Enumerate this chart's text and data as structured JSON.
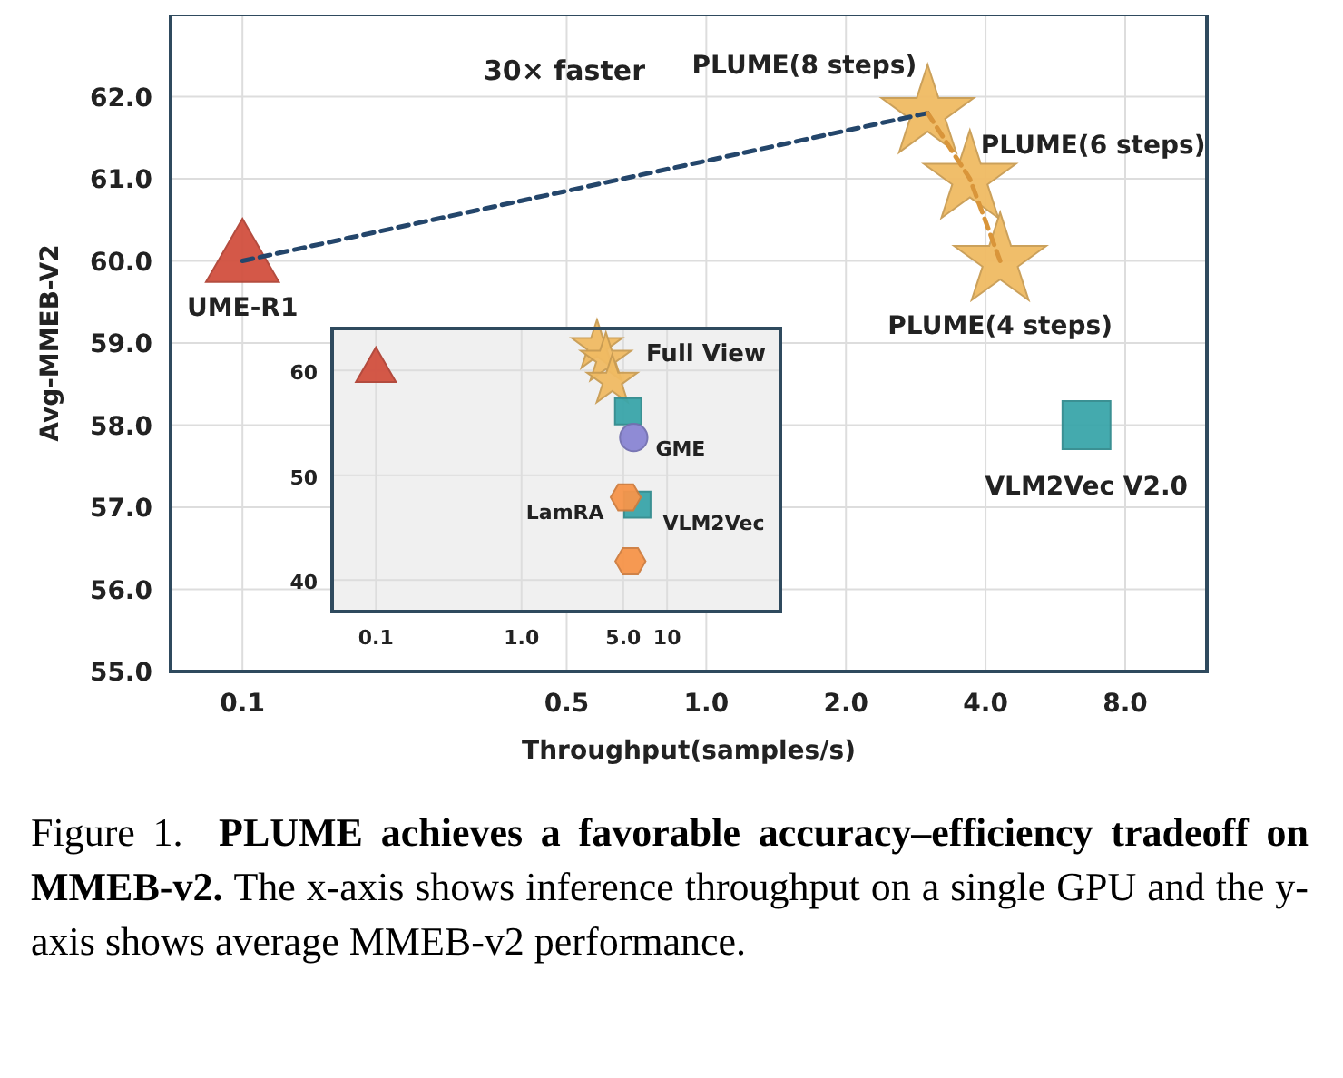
{
  "chart_data": [
    {
      "type": "scatter",
      "xlabel": "Throughput(samples/s)",
      "ylabel": "Avg-MMEB-V2",
      "log": "x",
      "xlim": [
        0.07,
        12
      ],
      "xticks": [
        0.1,
        0.5,
        {
          "value": 1,
          "label": "1.0"
        },
        {
          "value": 2,
          "label": "2.0"
        },
        {
          "value": 4,
          "label": "4.0"
        },
        {
          "value": 8,
          "label": "8.0"
        }
      ],
      "ylim": [
        55,
        63
      ],
      "yticks": [
        {
          "value": 55,
          "label": "55.0"
        },
        {
          "value": 56,
          "label": "56.0"
        },
        {
          "value": 57,
          "label": "57.0"
        },
        {
          "value": 58,
          "label": "58.0"
        },
        {
          "value": 59,
          "label": "59.0"
        },
        {
          "value": 60,
          "label": "60.0"
        },
        {
          "value": 61,
          "label": "61.0"
        },
        {
          "value": 62,
          "label": "62.0"
        }
      ],
      "grid": true,
      "legend": false,
      "annotations": [
        "30× faster",
        "Figure 1.",
        "PLUME achieves a favorable accuracy–efficiency tradeoff on MMEB-v2.",
        "The x-axis shows inference throughput on a single GPU and the y-axis shows average MMEB-v2 performance."
      ],
      "series": [
        {
          "type": "line",
          "color": "#24466b",
          "line_style": "dashed",
          "marker": "none",
          "x": [
            0.1,
            3.0
          ],
          "values": [
            60.0,
            61.8
          ]
        },
        {
          "type": "line",
          "color": "#d9953a",
          "line_style": "dashed",
          "marker": "none",
          "x": [
            3.0,
            3.7,
            4.3
          ],
          "values": [
            61.8,
            61.0,
            60.0
          ]
        },
        {
          "name": "UME-R1",
          "color": "#d2503f",
          "marker": "triangle",
          "x": [
            0.1
          ],
          "values": [
            60.0
          ]
        },
        {
          "name": "PLUME(8 steps)",
          "color": "#f0bb63",
          "marker": "star",
          "x": [
            3.0
          ],
          "values": [
            61.8
          ]
        },
        {
          "name": "PLUME(6 steps)",
          "color": "#f0bb63",
          "marker": "star",
          "x": [
            3.7
          ],
          "values": [
            61.0
          ]
        },
        {
          "name": "PLUME(4 steps)",
          "color": "#f0bb63",
          "marker": "star",
          "x": [
            4.3
          ],
          "values": [
            60.0
          ]
        },
        {
          "name": "VLM2Vec V2.0",
          "color": "#3aa6aa",
          "marker": "square",
          "x": [
            6.6
          ],
          "values": [
            58.0
          ]
        }
      ]
    },
    {
      "type": "scatter",
      "title": "Full View",
      "log": "x",
      "xlim": [
        0.05,
        60
      ],
      "xticks": [
        0.1,
        {
          "value": 1,
          "label": "1.0"
        },
        {
          "value": 5,
          "label": "5.0"
        },
        10
      ],
      "ylim": [
        37,
        64
      ],
      "yticks": [
        40,
        50,
        60
      ],
      "grid": true,
      "legend": false,
      "series": [
        {
          "color": "#d2503f",
          "marker": "triangle",
          "x": [
            0.1
          ],
          "values": [
            60.0
          ]
        },
        {
          "color": "#f0bb63",
          "marker": "star",
          "x": [
            3.3,
            3.8,
            4.2
          ],
          "values": [
            62.3,
            61.1,
            59.0
          ]
        },
        {
          "color": "#3aa6aa",
          "marker": "square",
          "x": [
            5.4
          ],
          "values": [
            56.1
          ]
        },
        {
          "name": "GME",
          "color": "#8a86d4",
          "marker": "circle",
          "x": [
            5.9
          ],
          "values": [
            53.6
          ]
        },
        {
          "name": "VLM2Vec",
          "color": "#3aa6aa",
          "marker": "square",
          "x": [
            6.25
          ],
          "values": [
            47.2
          ]
        },
        {
          "name": "LamRA",
          "color": "#f7954a",
          "x": [
            5.2
          ],
          "values": [
            47.9
          ]
        },
        {
          "color": "#f7954a",
          "x": [
            5.6
          ],
          "values": [
            41.8
          ]
        }
      ]
    }
  ]
}
